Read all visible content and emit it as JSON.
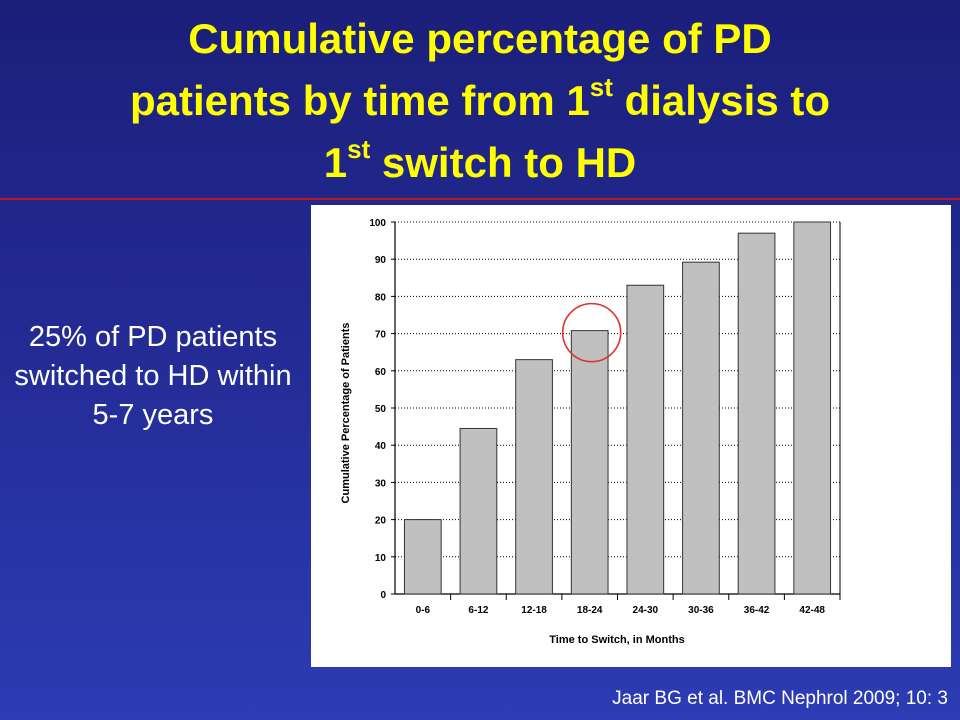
{
  "slide": {
    "title_line1": "Cumulative percentage of PD",
    "title_line2_pre": "patients by time from 1",
    "title_line2_sup": "st",
    "title_line2_post": " dialysis to",
    "title_line3_pre": "1",
    "title_line3_sup": "st",
    "title_line3_post": " switch to HD",
    "callout": "25% of PD patients switched to HD within 5-7 years",
    "citation": "Jaar BG et al. BMC Nephrol 2009; 10: 3"
  },
  "colors": {
    "title": "#ffff00",
    "background": "#2a35a8",
    "divider": "#c01520",
    "bar_fill": "#c0c0c0",
    "bar_stroke": "#333333",
    "highlight_circle": "#e03030"
  },
  "chart_data": {
    "type": "bar",
    "categories": [
      "0-6",
      "6-12",
      "12-18",
      "18-24",
      "24-30",
      "30-36",
      "36-42",
      "42-48"
    ],
    "values": [
      20,
      44.5,
      63,
      70.8,
      83,
      89.2,
      97,
      100
    ],
    "xlabel": "Time to Switch, in Months",
    "ylabel": "Cumulative Percentage of Patients",
    "ylim": [
      0,
      100
    ],
    "yticks": [
      0,
      10,
      20,
      30,
      40,
      50,
      60,
      70,
      80,
      90,
      100
    ],
    "grid": "horizontal dotted",
    "highlighted_category": "18-24"
  }
}
